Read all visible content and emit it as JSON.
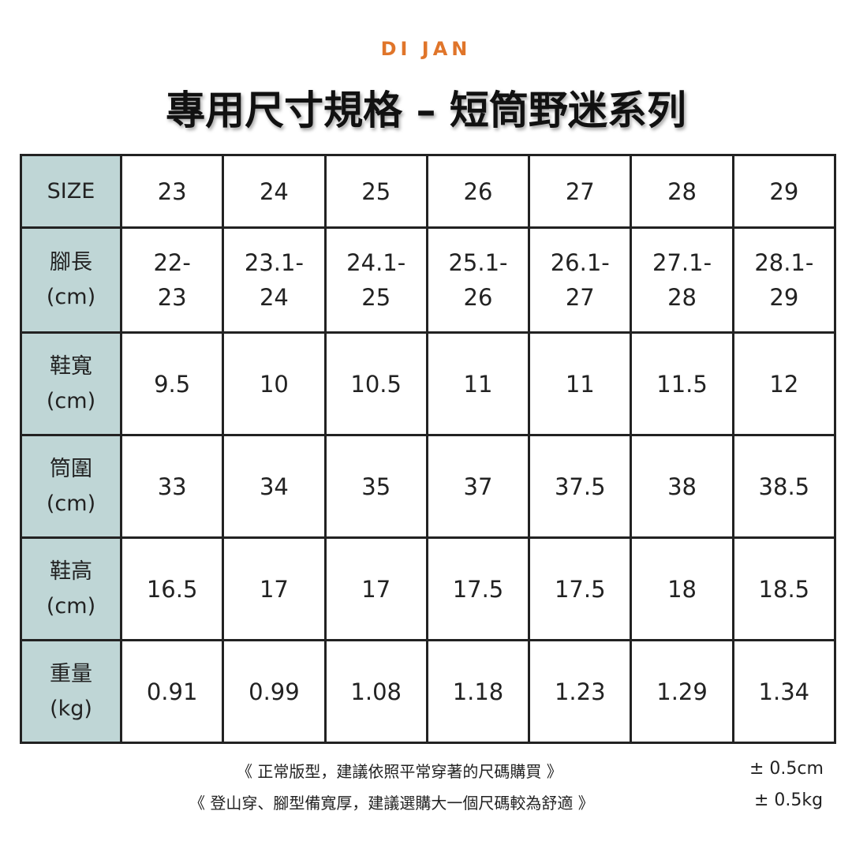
{
  "brand": "DI JAN",
  "title": "專用尺寸規格 – 短筒野迷系列",
  "colors": {
    "brand": "#e0752a",
    "label_bg": "#bfd6d6",
    "border": "#222222"
  },
  "table": {
    "rows": [
      {
        "label": [
          "SIZE"
        ],
        "values": [
          [
            "23"
          ],
          [
            "24"
          ],
          [
            "25"
          ],
          [
            "26"
          ],
          [
            "27"
          ],
          [
            "28"
          ],
          [
            "29"
          ]
        ]
      },
      {
        "label": [
          "腳長",
          "(cm)"
        ],
        "values": [
          [
            "22-",
            "23"
          ],
          [
            "23.1-",
            "24"
          ],
          [
            "24.1-",
            "25"
          ],
          [
            "25.1-",
            "26"
          ],
          [
            "26.1-",
            "27"
          ],
          [
            "27.1-",
            "28"
          ],
          [
            "28.1-",
            "29"
          ]
        ]
      },
      {
        "label": [
          "鞋寬",
          "(cm)"
        ],
        "values": [
          [
            "9.5"
          ],
          [
            "10"
          ],
          [
            "10.5"
          ],
          [
            "11"
          ],
          [
            "11"
          ],
          [
            "11.5"
          ],
          [
            "12"
          ]
        ]
      },
      {
        "label": [
          "筒圍",
          "(cm)"
        ],
        "values": [
          [
            "33"
          ],
          [
            "34"
          ],
          [
            "35"
          ],
          [
            "37"
          ],
          [
            "37.5"
          ],
          [
            "38"
          ],
          [
            "38.5"
          ]
        ]
      },
      {
        "label": [
          "鞋高",
          "(cm)"
        ],
        "values": [
          [
            "16.5"
          ],
          [
            "17"
          ],
          [
            "17"
          ],
          [
            "17.5"
          ],
          [
            "17.5"
          ],
          [
            "18"
          ],
          [
            "18.5"
          ]
        ]
      },
      {
        "label": [
          "重量",
          "(kg)"
        ],
        "values": [
          [
            "0.91"
          ],
          [
            "0.99"
          ],
          [
            "1.08"
          ],
          [
            "1.18"
          ],
          [
            "1.23"
          ],
          [
            "1.29"
          ],
          [
            "1.34"
          ]
        ]
      }
    ]
  },
  "notes": [
    "《 正常版型，建議依照平常穿著的尺碼購買 》",
    "《 登山穿、腳型備寬厚，建議選購大一個尺碼較為舒適 》"
  ],
  "tolerances": [
    "± 0.5cm",
    "± 0.5kg"
  ]
}
